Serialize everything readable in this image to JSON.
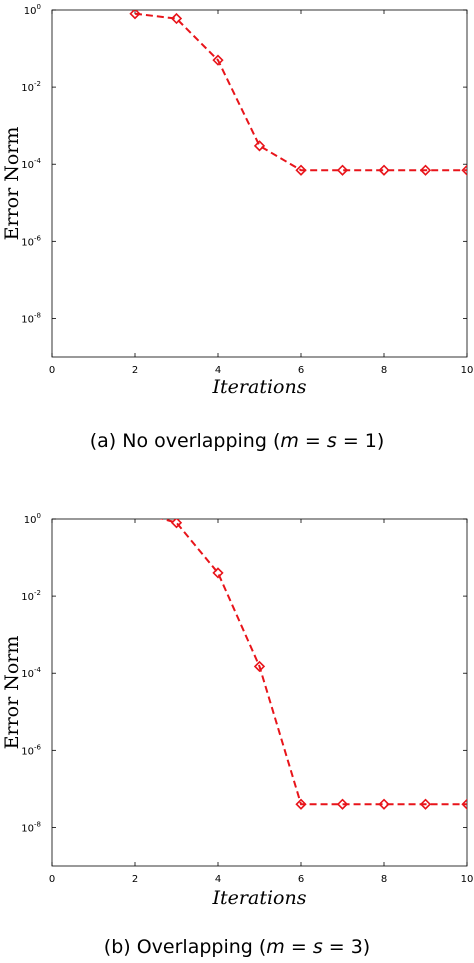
{
  "chart_data": [
    {
      "type": "line",
      "xlabel": "Iterations",
      "ylabel": "Error Norm",
      "caption": {
        "tag": "(a)",
        "text_pre": "No overlapping (",
        "math_m": "m",
        "eq1": " = ",
        "math_s": "s",
        "eq2": " = 1)"
      },
      "xlim": [
        0,
        10
      ],
      "ylim": [
        1e-09,
        1
      ],
      "yscale": "log",
      "grid": false,
      "xticks": [
        "0",
        "2",
        "4",
        "6",
        "8",
        "10"
      ],
      "yticks": [
        {
          "base": "10",
          "exp": "0",
          "value": 1
        },
        {
          "base": "10",
          "exp": "-2",
          "value": 0.01
        },
        {
          "base": "10",
          "exp": "-4",
          "value": 0.0001
        },
        {
          "base": "10",
          "exp": "-6",
          "value": 1e-06
        },
        {
          "base": "10",
          "exp": "-8",
          "value": 1e-08
        }
      ],
      "series": [
        {
          "color": "#e8141a",
          "line_style": "dashed",
          "marker": "diamond",
          "x": [
            2,
            3,
            4,
            5,
            6,
            7,
            8,
            9,
            10
          ],
          "y": [
            0.8,
            0.6,
            0.05,
            0.0003,
            7e-05,
            7e-05,
            7e-05,
            7e-05,
            7e-05
          ]
        }
      ]
    },
    {
      "type": "line",
      "xlabel": "Iterations",
      "ylabel": "Error Norm",
      "caption": {
        "tag": "(b)",
        "text_pre": "Overlapping (",
        "math_m": "m",
        "eq1": " = ",
        "math_s": "s",
        "eq2": " = 3)"
      },
      "xlim": [
        0,
        10
      ],
      "ylim": [
        1e-09,
        1
      ],
      "yscale": "log",
      "grid": false,
      "xticks": [
        "0",
        "2",
        "4",
        "6",
        "8",
        "10"
      ],
      "yticks": [
        {
          "base": "10",
          "exp": "0",
          "value": 1
        },
        {
          "base": "10",
          "exp": "-2",
          "value": 0.01
        },
        {
          "base": "10",
          "exp": "-4",
          "value": 0.0001
        },
        {
          "base": "10",
          "exp": "-6",
          "value": 1e-06
        },
        {
          "base": "10",
          "exp": "-8",
          "value": 1e-08
        }
      ],
      "series": [
        {
          "color": "#e8141a",
          "line_style": "dashed",
          "marker": "diamond",
          "x": [
            2,
            3,
            4,
            5,
            6,
            7,
            8,
            9,
            10
          ],
          "y": [
            1.6,
            0.8,
            0.04,
            0.00015,
            4e-08,
            4e-08,
            4e-08,
            4e-08,
            4e-08
          ],
          "marker_from_index": 1
        }
      ]
    }
  ]
}
